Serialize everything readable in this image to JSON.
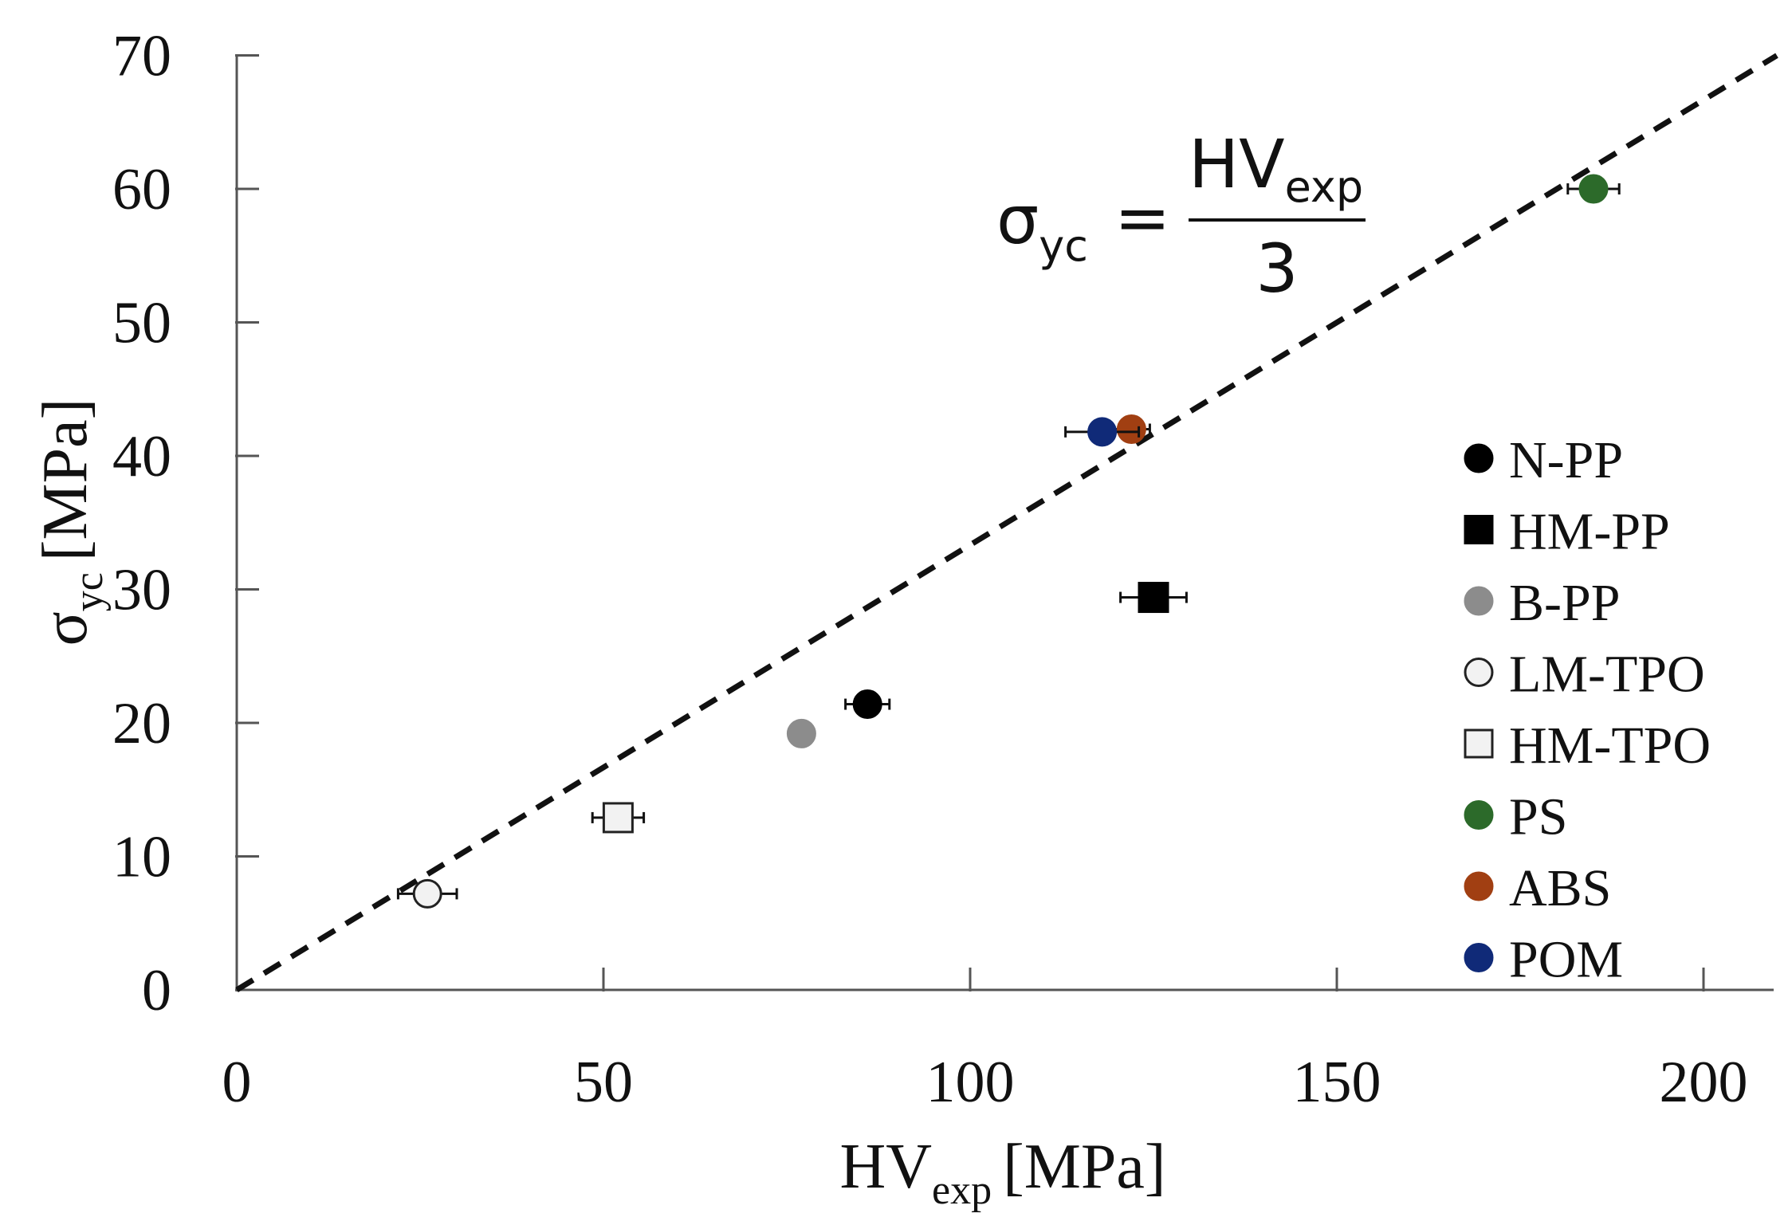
{
  "chart_data": {
    "type": "scatter",
    "xlabel": {
      "main": "HV",
      "sub": "exp",
      "unit": "[MPa]"
    },
    "ylabel": {
      "main": "σ",
      "sub": "yc",
      "unit": "[MPa]"
    },
    "xlim": [
      0,
      210
    ],
    "ylim": [
      0,
      70
    ],
    "xticks": [
      0,
      50,
      100,
      150,
      200
    ],
    "yticks": [
      0,
      10,
      20,
      30,
      40,
      50,
      60,
      70
    ],
    "grid": false,
    "legend_position": "right",
    "reference_line": {
      "style": "dashed",
      "slope": 0.3333,
      "intercept": 0,
      "equation": {
        "lhs_main": "σ",
        "lhs_sub": "yc",
        "equals": "=",
        "numerator_main": "HV",
        "numerator_sub": "exp",
        "denominator": "3"
      }
    },
    "series": [
      {
        "name": "N-PP",
        "marker": "circle",
        "color": "#000000",
        "x": 86,
        "y": 21.4,
        "xerr": 3
      },
      {
        "name": "HM-PP",
        "marker": "square",
        "color": "#000000",
        "x": 125,
        "y": 29.4,
        "xerr": 4.5
      },
      {
        "name": "B-PP",
        "marker": "circle",
        "color": "#8c8c8c",
        "x": 77,
        "y": 19.2,
        "xerr": 1.5
      },
      {
        "name": "LM-TPO",
        "marker": "circle",
        "color": "#f2f2f2",
        "x": 26,
        "y": 7.2,
        "xerr": 4
      },
      {
        "name": "HM-TPO",
        "marker": "square",
        "color": "#f2f2f2",
        "x": 52,
        "y": 12.9,
        "xerr": 3.5
      },
      {
        "name": "PS",
        "marker": "circle",
        "color": "#2c6a2a",
        "x": 185,
        "y": 60,
        "xerr": 3.5
      },
      {
        "name": "ABS",
        "marker": "circle",
        "color": "#a13f12",
        "x": 122,
        "y": 42,
        "xerr": 2.5
      },
      {
        "name": "POM",
        "marker": "circle",
        "color": "#102a78",
        "x": 118,
        "y": 41.8,
        "xerr": 5
      }
    ]
  }
}
